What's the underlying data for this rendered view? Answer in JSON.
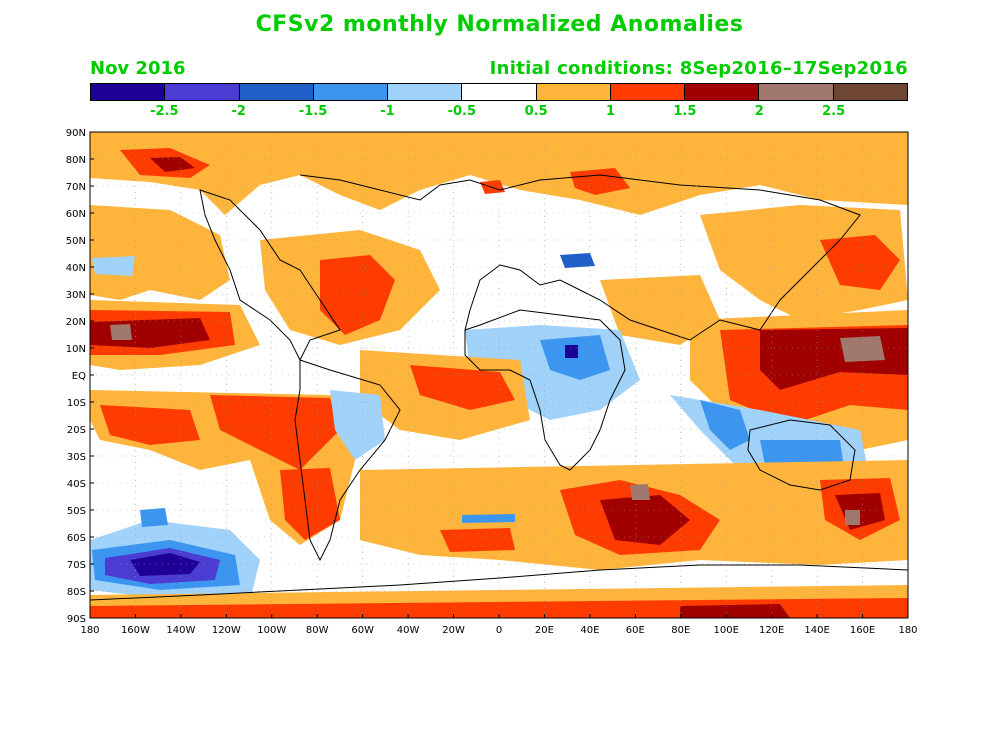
{
  "title": "CFSv2 monthly Normalized Anomalies",
  "valid_month": "Nov 2016",
  "initial_conditions": "Initial conditions: 8Sep2016–17Sep2016",
  "colorbar": {
    "colors": [
      "#1f0096",
      "#4b3cd2",
      "#1e5fc8",
      "#3c96f0",
      "#a0d2fa",
      "#ffffff",
      "#ffb43c",
      "#ff3c00",
      "#a00000",
      "#a0786e",
      "#6e4632"
    ],
    "labels": [
      "-2.5",
      "-2",
      "-1.5",
      "-1",
      "-0.5",
      "0.5",
      "1",
      "1.5",
      "2",
      "2.5"
    ]
  },
  "axes": {
    "lat_labels": [
      "90N",
      "80N",
      "70N",
      "60N",
      "50N",
      "40N",
      "30N",
      "20N",
      "10N",
      "EQ",
      "10S",
      "20S",
      "30S",
      "40S",
      "50S",
      "60S",
      "70S",
      "80S",
      "90S"
    ],
    "lon_labels": [
      "180",
      "160W",
      "140W",
      "120W",
      "100W",
      "80W",
      "60W",
      "40W",
      "20W",
      "0",
      "20E",
      "40E",
      "60E",
      "80E",
      "100E",
      "120E",
      "140E",
      "160E",
      "180"
    ]
  }
}
